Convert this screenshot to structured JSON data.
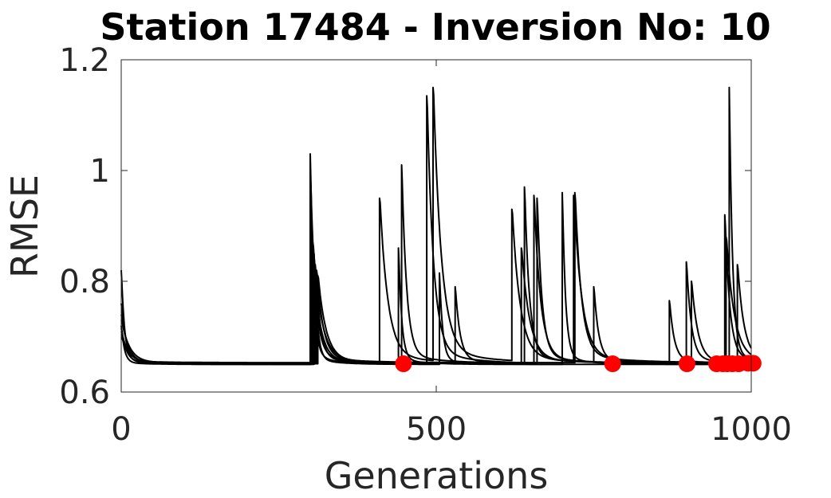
{
  "chart_data": {
    "type": "line",
    "title": "Station 17484 - Inversion No: 10",
    "xlabel": "Generations",
    "ylabel": "RMSE",
    "xlim": [
      0,
      1000
    ],
    "ylim": [
      0.6,
      1.2
    ],
    "xticks": [
      {
        "value": 0,
        "label": "0"
      },
      {
        "value": 500,
        "label": "500"
      },
      {
        "value": 1000,
        "label": "1000"
      }
    ],
    "yticks": [
      {
        "value": 0.6,
        "label": "0.6"
      },
      {
        "value": 0.8,
        "label": "0.8"
      },
      {
        "value": 1.0,
        "label": "1"
      },
      {
        "value": 1.2,
        "label": "1.2"
      }
    ],
    "grid": false,
    "line_color": "#000000",
    "marker_color": "#ff0000",
    "series": [
      {
        "restarts": [
          [
            0,
            0.82
          ],
          [
            300,
            1.03
          ],
          [
            505,
            0.815
          ]
        ],
        "floor": 0.65
      },
      {
        "restarts": [
          [
            0,
            0.76
          ],
          [
            300,
            1.0
          ],
          [
            445,
            1.01
          ],
          [
            640,
            0.97
          ],
          [
            750,
            0.79
          ],
          [
            870,
            0.765
          ]
        ],
        "floor": 0.652
      },
      {
        "restarts": [
          [
            0,
            0.74
          ],
          [
            302,
            0.9
          ],
          [
            485,
            1.135
          ],
          [
            655,
            0.955
          ],
          [
            905,
            0.8
          ]
        ],
        "floor": 0.65
      },
      {
        "restarts": [
          [
            0,
            0.73
          ],
          [
            304,
            0.87
          ],
          [
            410,
            0.95
          ],
          [
            495,
            1.15
          ],
          [
            620,
            0.93
          ],
          [
            718,
            0.955
          ]
        ],
        "floor": 0.651
      },
      {
        "restarts": [
          [
            0,
            0.72
          ],
          [
            306,
            0.85
          ],
          [
            440,
            0.86
          ],
          [
            700,
            0.96
          ],
          [
            965,
            1.15
          ]
        ],
        "floor": 0.65
      },
      {
        "restarts": [
          [
            0,
            0.715
          ],
          [
            308,
            0.83
          ],
          [
            530,
            0.79
          ],
          [
            660,
            0.95
          ],
          [
            897,
            0.835
          ],
          [
            958,
            0.92
          ]
        ],
        "floor": 0.652
      },
      {
        "restarts": [
          [
            0,
            0.71
          ],
          [
            310,
            0.82
          ],
          [
            720,
            0.96
          ],
          [
            978,
            0.83
          ]
        ],
        "floor": 0.653
      },
      {
        "restarts": [
          [
            0,
            0.7
          ],
          [
            312,
            0.81
          ],
          [
            635,
            0.86
          ],
          [
            960,
            0.88
          ]
        ],
        "floor": 0.651
      }
    ],
    "best_points": {
      "x": [
        448,
        780,
        898,
        945,
        955,
        962,
        970,
        980,
        995,
        1003
      ],
      "y": [
        0.651,
        0.651,
        0.651,
        0.651,
        0.651,
        0.651,
        0.651,
        0.651,
        0.652,
        0.652
      ]
    }
  }
}
